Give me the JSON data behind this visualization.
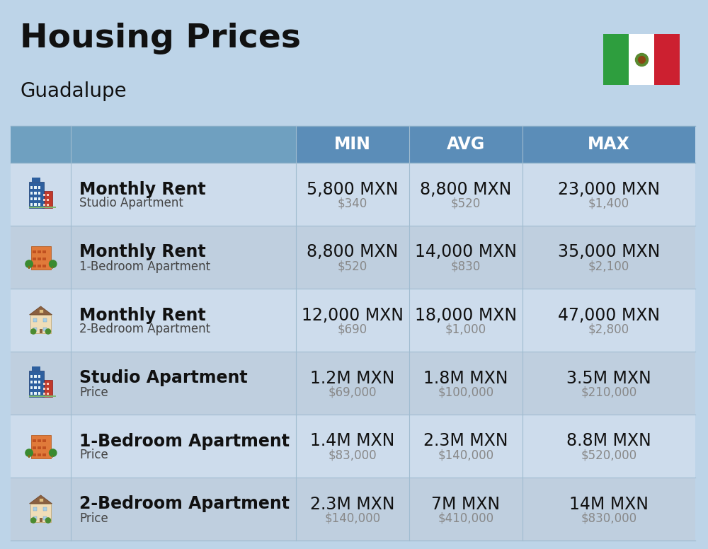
{
  "title": "Housing Prices",
  "subtitle": "Guadalupe",
  "background_color": "#bdd4e8",
  "header_bg_color": "#5b8db8",
  "header_text_color": "#ffffff",
  "row_bg_even": "#cddcec",
  "row_bg_odd": "#bfcfdf",
  "col_divider_color": "#a0bcd0",
  "row_divider_color": "#a0bcd0",
  "headers": [
    "",
    "",
    "MIN",
    "AVG",
    "MAX"
  ],
  "rows": [
    {
      "icon_type": "blue_building",
      "label_bold": "Monthly Rent",
      "label_regular": "Studio Apartment",
      "min_mxn": "5,800 MXN",
      "min_usd": "$340",
      "avg_mxn": "8,800 MXN",
      "avg_usd": "$520",
      "max_mxn": "23,000 MXN",
      "max_usd": "$1,400"
    },
    {
      "icon_type": "orange_building",
      "label_bold": "Monthly Rent",
      "label_regular": "1-Bedroom Apartment",
      "min_mxn": "8,800 MXN",
      "min_usd": "$520",
      "avg_mxn": "14,000 MXN",
      "avg_usd": "$830",
      "max_mxn": "35,000 MXN",
      "max_usd": "$2,100"
    },
    {
      "icon_type": "beige_building",
      "label_bold": "Monthly Rent",
      "label_regular": "2-Bedroom Apartment",
      "min_mxn": "12,000 MXN",
      "min_usd": "$690",
      "avg_mxn": "18,000 MXN",
      "avg_usd": "$1,000",
      "max_mxn": "47,000 MXN",
      "max_usd": "$2,800"
    },
    {
      "icon_type": "blue_building",
      "label_bold": "Studio Apartment",
      "label_regular": "Price",
      "min_mxn": "1.2M MXN",
      "min_usd": "$69,000",
      "avg_mxn": "1.8M MXN",
      "avg_usd": "$100,000",
      "max_mxn": "3.5M MXN",
      "max_usd": "$210,000"
    },
    {
      "icon_type": "orange_building",
      "label_bold": "1-Bedroom Apartment",
      "label_regular": "Price",
      "min_mxn": "1.4M MXN",
      "min_usd": "$83,000",
      "avg_mxn": "2.3M MXN",
      "avg_usd": "$140,000",
      "max_mxn": "8.8M MXN",
      "max_usd": "$520,000"
    },
    {
      "icon_type": "beige_building",
      "label_bold": "2-Bedroom Apartment",
      "label_regular": "Price",
      "min_mxn": "2.3M MXN",
      "min_usd": "$140,000",
      "avg_mxn": "7M MXN",
      "avg_usd": "$410,000",
      "max_mxn": "14M MXN",
      "max_usd": "$830,000"
    }
  ],
  "title_fontsize": 34,
  "subtitle_fontsize": 20,
  "header_fontsize": 17,
  "cell_main_fontsize": 17,
  "cell_sub_fontsize": 12,
  "figsize": [
    10.0,
    7.76
  ],
  "dpi": 100
}
